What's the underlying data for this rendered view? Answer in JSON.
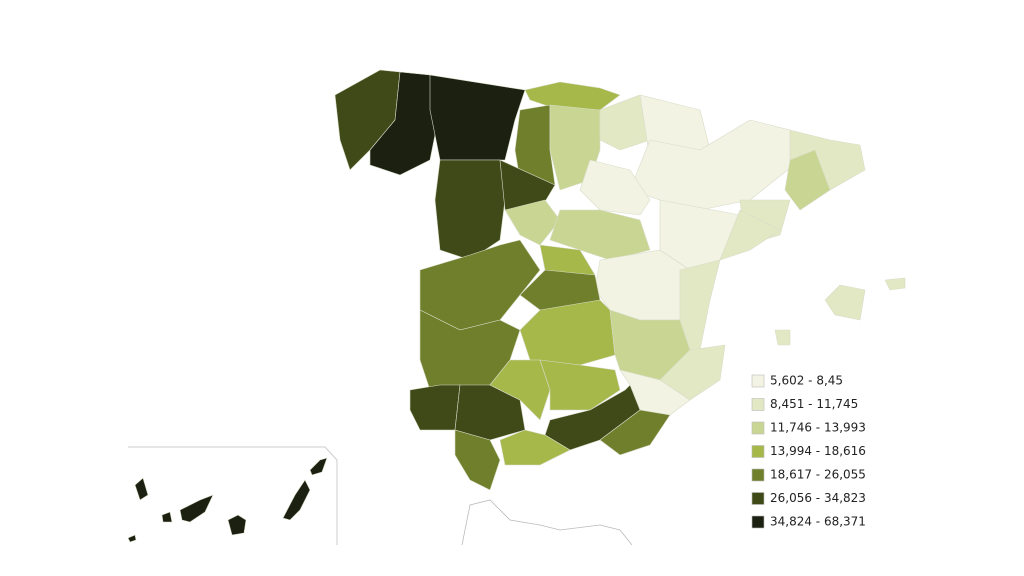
{
  "legend": {
    "items": [
      {
        "label": "5,602 - 8,45",
        "color": "#f2f3e3"
      },
      {
        "label": "8,451 - 11,745",
        "color": "#e3e8c4"
      },
      {
        "label": "11,746 - 13,993",
        "color": "#c9d693"
      },
      {
        "label": "13,994 - 18,616",
        "color": "#a6b84a"
      },
      {
        "label": "18,617 - 26,055",
        "color": "#6f7f2c"
      },
      {
        "label": "26,056 - 34,823",
        "color": "#3f4a18"
      },
      {
        "label": "34,824 - 68,371",
        "color": "#1b2011"
      }
    ]
  }
}
